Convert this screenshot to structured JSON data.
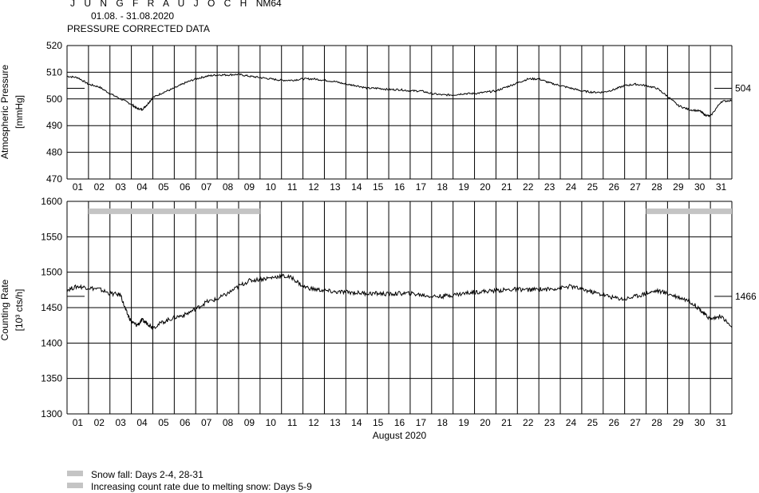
{
  "header": {
    "station": "JUNGFRAUJOCH",
    "station_letters": "J U N G F R A U J O C H",
    "instrument": "NM64",
    "period": "01.08. - 31.08.2020",
    "subtitle": "PRESSURE CORRECTED DATA"
  },
  "legend": {
    "items": [
      {
        "label": "Snow fall: Days 2-4, 28-31",
        "color": "#c4c4c4"
      },
      {
        "label": "Increasing count rate due to melting snow: Days 5-9",
        "color": "#c4c4c4"
      }
    ]
  },
  "chart_data": [
    {
      "type": "line",
      "panel": "pressure",
      "ylabel": "Atmospheric Pressure",
      "yunit": "[mmHg]",
      "ylim": [
        470,
        520
      ],
      "yticks": [
        470,
        480,
        490,
        500,
        510,
        520
      ],
      "xlim": [
        0,
        31
      ],
      "x_tick_labels": [
        "01",
        "02",
        "03",
        "04",
        "05",
        "06",
        "07",
        "08",
        "09",
        "10",
        "11",
        "12",
        "13",
        "14",
        "15",
        "16",
        "17",
        "18",
        "19",
        "20",
        "21",
        "22",
        "23",
        "24",
        "25",
        "26",
        "27",
        "28",
        "29",
        "30",
        "31"
      ],
      "reference_value": 504,
      "grid": true,
      "series": [
        {
          "x": [
            0,
            0.5,
            1,
            1.5,
            2,
            2.5,
            3,
            3.25,
            3.5,
            3.75,
            4,
            4.5,
            5,
            5.5,
            6,
            6.5,
            7,
            7.5,
            8,
            8.5,
            9,
            9.5,
            10,
            10.5,
            11,
            11.5,
            12,
            12.5,
            13,
            13.5,
            14,
            14.5,
            15,
            15.5,
            16,
            16.5,
            17,
            17.5,
            18,
            18.5,
            19,
            19.5,
            20,
            20.5,
            21,
            21.5,
            22,
            22.5,
            23,
            23.5,
            24,
            24.5,
            25,
            25.5,
            26,
            26.5,
            27,
            27.5,
            28,
            28.5,
            29,
            29.5,
            29.75,
            30,
            30.5,
            31
          ],
          "values": [
            508.5,
            508,
            505.5,
            504.5,
            502,
            500,
            498,
            496.5,
            496,
            498,
            500.5,
            502.5,
            504,
            506,
            507.5,
            508.5,
            509,
            509,
            509.2,
            508.5,
            508,
            507.5,
            507,
            507,
            507.5,
            507.5,
            507,
            506.5,
            505.5,
            505,
            504,
            504,
            503.5,
            503.5,
            503,
            503,
            502,
            501.5,
            501.5,
            502,
            502,
            502.5,
            503,
            504.5,
            506,
            507.5,
            507.5,
            506,
            505,
            504,
            503,
            502.5,
            502.5,
            503.5,
            505,
            505.5,
            505,
            504,
            501,
            497.5,
            496,
            495.5,
            494,
            493.5,
            499,
            499.5
          ]
        }
      ]
    },
    {
      "type": "line",
      "panel": "counting_rate",
      "ylabel": "Counting Rate",
      "yunit": "[10³ cts/h]",
      "xlabel": "August 2020",
      "ylim": [
        1300,
        1600
      ],
      "yticks": [
        1300,
        1350,
        1400,
        1450,
        1500,
        1550,
        1600
      ],
      "xlim": [
        0,
        31
      ],
      "x_tick_labels": [
        "01",
        "02",
        "03",
        "04",
        "05",
        "06",
        "07",
        "08",
        "09",
        "10",
        "11",
        "12",
        "13",
        "14",
        "15",
        "16",
        "17",
        "18",
        "19",
        "20",
        "21",
        "22",
        "23",
        "24",
        "25",
        "26",
        "27",
        "28",
        "29",
        "30",
        "31"
      ],
      "reference_value": 1466,
      "grid": true,
      "highlight_bars": [
        {
          "x_start": 1,
          "x_end": 9,
          "y": 1586
        },
        {
          "x_start": 27,
          "x_end": 31,
          "y": 1586
        }
      ],
      "series": [
        {
          "x": [
            0,
            0.5,
            1,
            1.5,
            2,
            2.5,
            2.75,
            3,
            3.25,
            3.5,
            3.75,
            4,
            4.5,
            5,
            5.5,
            6,
            6.5,
            7,
            7.5,
            8,
            8.5,
            9,
            9.5,
            10,
            10.5,
            11,
            11.5,
            12,
            12.5,
            13,
            13.5,
            14,
            14.5,
            15,
            15.5,
            16,
            16.5,
            17,
            17.5,
            18,
            18.5,
            19,
            19.5,
            20,
            20.5,
            21,
            21.5,
            22,
            22.5,
            23,
            23.5,
            24,
            24.5,
            25,
            25.5,
            26,
            26.5,
            27,
            27.5,
            28,
            28.5,
            29,
            29.5,
            29.75,
            30,
            30.5,
            31
          ],
          "values": [
            1475,
            1480,
            1478,
            1476,
            1470,
            1468,
            1445,
            1430,
            1425,
            1432,
            1428,
            1422,
            1430,
            1436,
            1440,
            1448,
            1458,
            1462,
            1470,
            1480,
            1488,
            1490,
            1492,
            1495,
            1492,
            1480,
            1476,
            1474,
            1472,
            1472,
            1471,
            1470,
            1470,
            1469,
            1470,
            1470,
            1468,
            1466,
            1466,
            1468,
            1470,
            1472,
            1473,
            1474,
            1475,
            1476,
            1475,
            1476,
            1476,
            1478,
            1480,
            1476,
            1472,
            1468,
            1464,
            1462,
            1466,
            1470,
            1474,
            1470,
            1465,
            1460,
            1448,
            1440,
            1434,
            1438,
            1422
          ]
        }
      ]
    }
  ]
}
